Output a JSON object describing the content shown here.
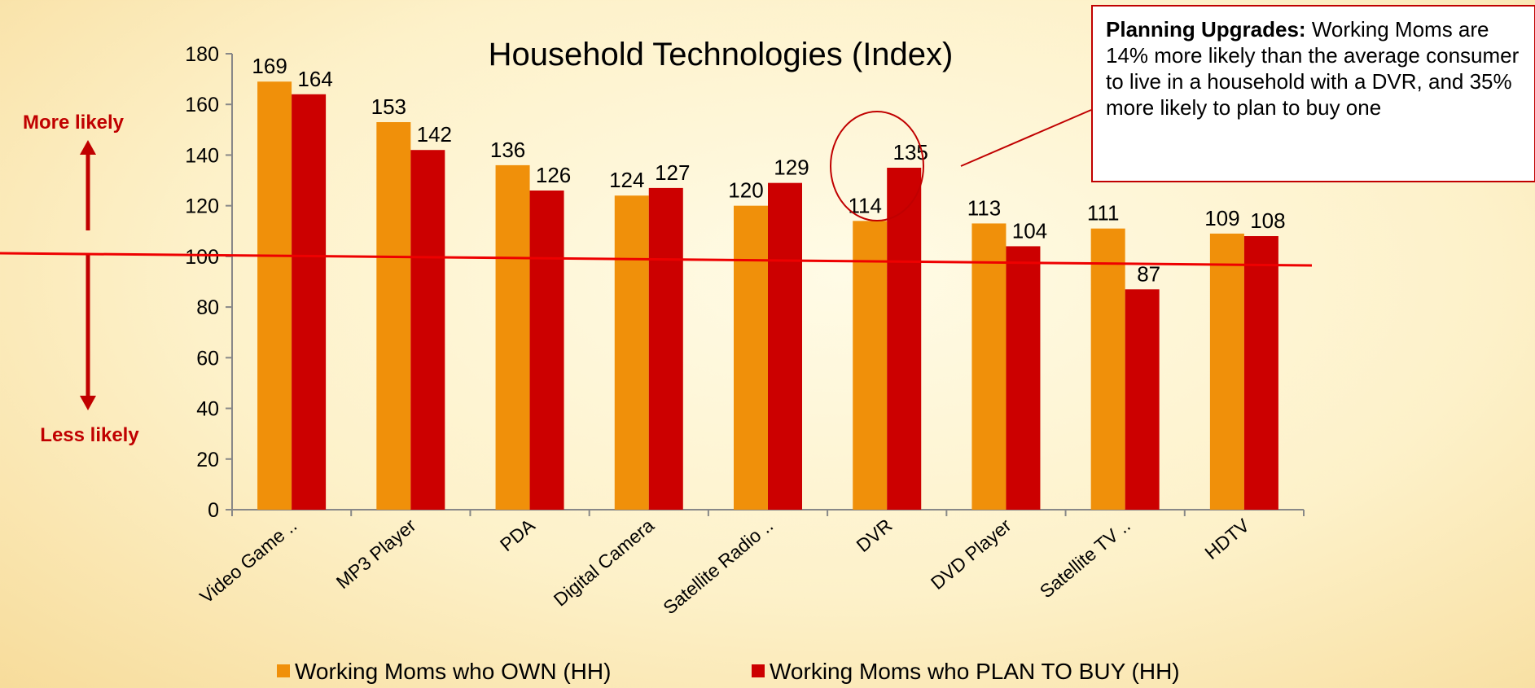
{
  "chart_data": {
    "type": "bar",
    "title": "Household Technologies (Index)",
    "categories": [
      "Video Game ..",
      "MP3 Player",
      "PDA",
      "Digital Camera",
      "Satellite Radio ..",
      "DVR",
      "DVD Player",
      "Satellite TV ..",
      "HDTV"
    ],
    "series": [
      {
        "name": "Working Moms who OWN (HH)",
        "color": "#f0900a",
        "values": [
          169,
          153,
          136,
          124,
          120,
          114,
          113,
          111,
          109
        ]
      },
      {
        "name": "Working Moms who PLAN TO BUY (HH)",
        "color": "#cc0000",
        "values": [
          164,
          142,
          126,
          127,
          129,
          135,
          104,
          87,
          108
        ]
      }
    ],
    "ylim": [
      0,
      180
    ],
    "yticks": [
      0,
      20,
      40,
      60,
      80,
      100,
      120,
      140,
      160,
      180
    ],
    "axis_notes": {
      "top": "More likely",
      "bottom": "Less likely"
    },
    "annotation": {
      "heading": "Planning Upgrades:",
      "text": "Working Moms are 14% more likely than the average consumer to live in a household with a DVR, and 35% more likely to plan to buy one"
    }
  }
}
